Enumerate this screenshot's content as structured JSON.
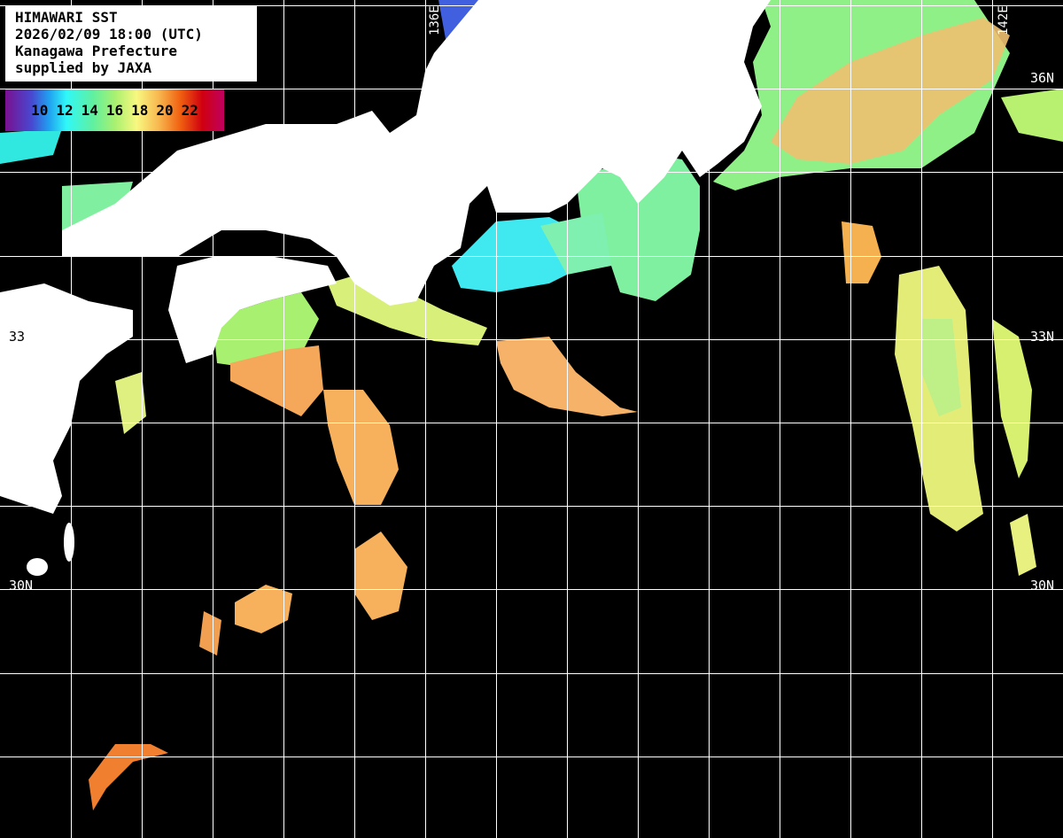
{
  "header": {
    "title": "HIMAWARI SST",
    "datetime": "2026/02/09 18:00 (UTC)",
    "region": "Kanagawa Prefecture",
    "credit": "supplied by JAXA"
  },
  "legend": {
    "unit_ticks": [
      "10",
      "12",
      "14",
      "16",
      "18",
      "20",
      "22"
    ],
    "colors": [
      "#7a1090",
      "#4848d0",
      "#30f8f8",
      "#60f0a0",
      "#f8f880",
      "#f06010",
      "#c00060"
    ]
  },
  "grid": {
    "lat_labels": {
      "n36": "36N",
      "n33_right": "33N",
      "n33_left": "33",
      "n30_right": "30N",
      "n30_left": "30N"
    },
    "lon_labels": {
      "e136": "136E",
      "e142": "142E"
    }
  },
  "colors": {
    "land": "#ffffff",
    "ocean_no_data": "#000000",
    "grid": "#ffffff"
  }
}
